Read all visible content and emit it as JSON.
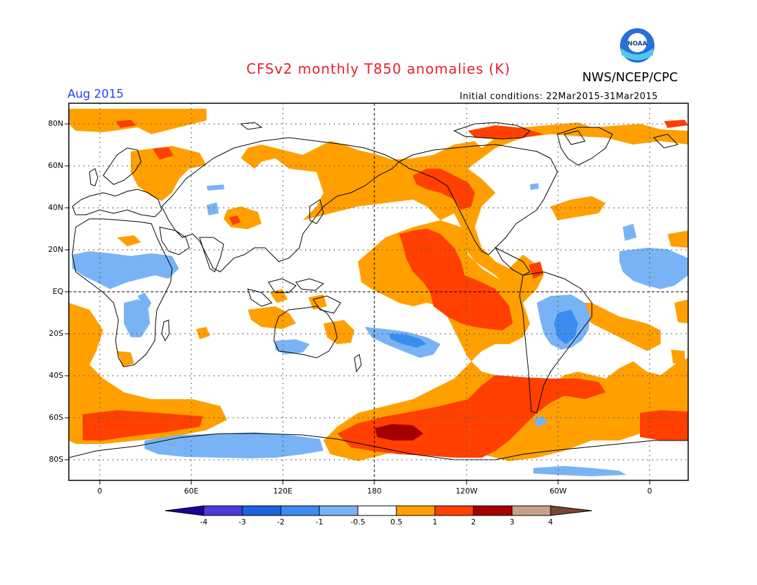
{
  "title": "CFSv2 monthly T850 anomalies (K)",
  "agency": "NWS/NCEP/CPC",
  "logo_text": "NOAA",
  "valid_month": "Aug 2015",
  "initial_conditions": "Initial conditions: 22Mar2015-31Mar2015",
  "lat_labels": [
    "80N",
    "60N",
    "40N",
    "20N",
    "EQ",
    "20S",
    "40S",
    "60S",
    "80S"
  ],
  "lon_labels": [
    "0",
    "60E",
    "120E",
    "180",
    "120W",
    "60W",
    "0"
  ],
  "colorbar": {
    "labels": [
      "-4",
      "-3",
      "-2",
      "-1",
      "-0.5",
      "0.5",
      "1",
      "2",
      "3",
      "4"
    ],
    "colors": [
      "#1e0096",
      "#4b3cd8",
      "#1e64dc",
      "#3c8cf0",
      "#78b4f5",
      "#ffffff",
      "#ffa000",
      "#ff4000",
      "#a50000",
      "#c8a08c",
      "#784632"
    ]
  },
  "map": {
    "projection": "cylindrical equidistant",
    "lon_range": [
      -20,
      380
    ],
    "lat_range": [
      -90,
      90
    ],
    "grid": "dotted every 20° lat, 60° lon; dashed equator and 180° meridian"
  }
}
